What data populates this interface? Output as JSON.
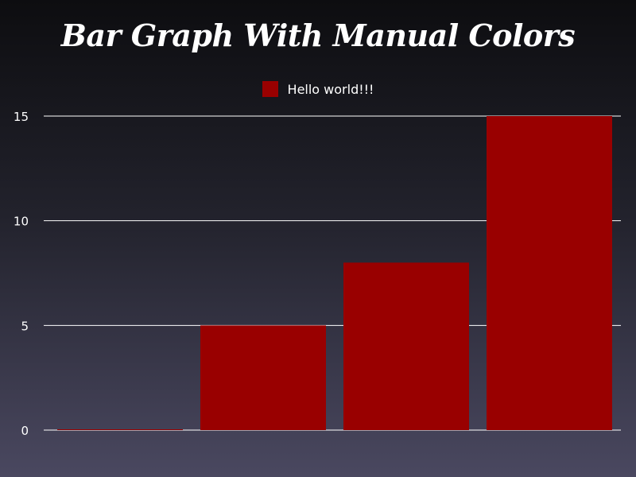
{
  "chart_data": {
    "type": "bar",
    "title": "Bar Graph With Manual Colors",
    "categories": [
      "",
      "",
      "",
      ""
    ],
    "series": [
      {
        "name": "Hello world!!!",
        "values": [
          0,
          5,
          8,
          15
        ]
      }
    ],
    "ylim": [
      0,
      15
    ],
    "yticks": [
      "0",
      "5",
      "10",
      "15"
    ],
    "grid": true,
    "legend_position": "top-center",
    "bar_color": "#990000",
    "grid_color": "#ffffff"
  }
}
